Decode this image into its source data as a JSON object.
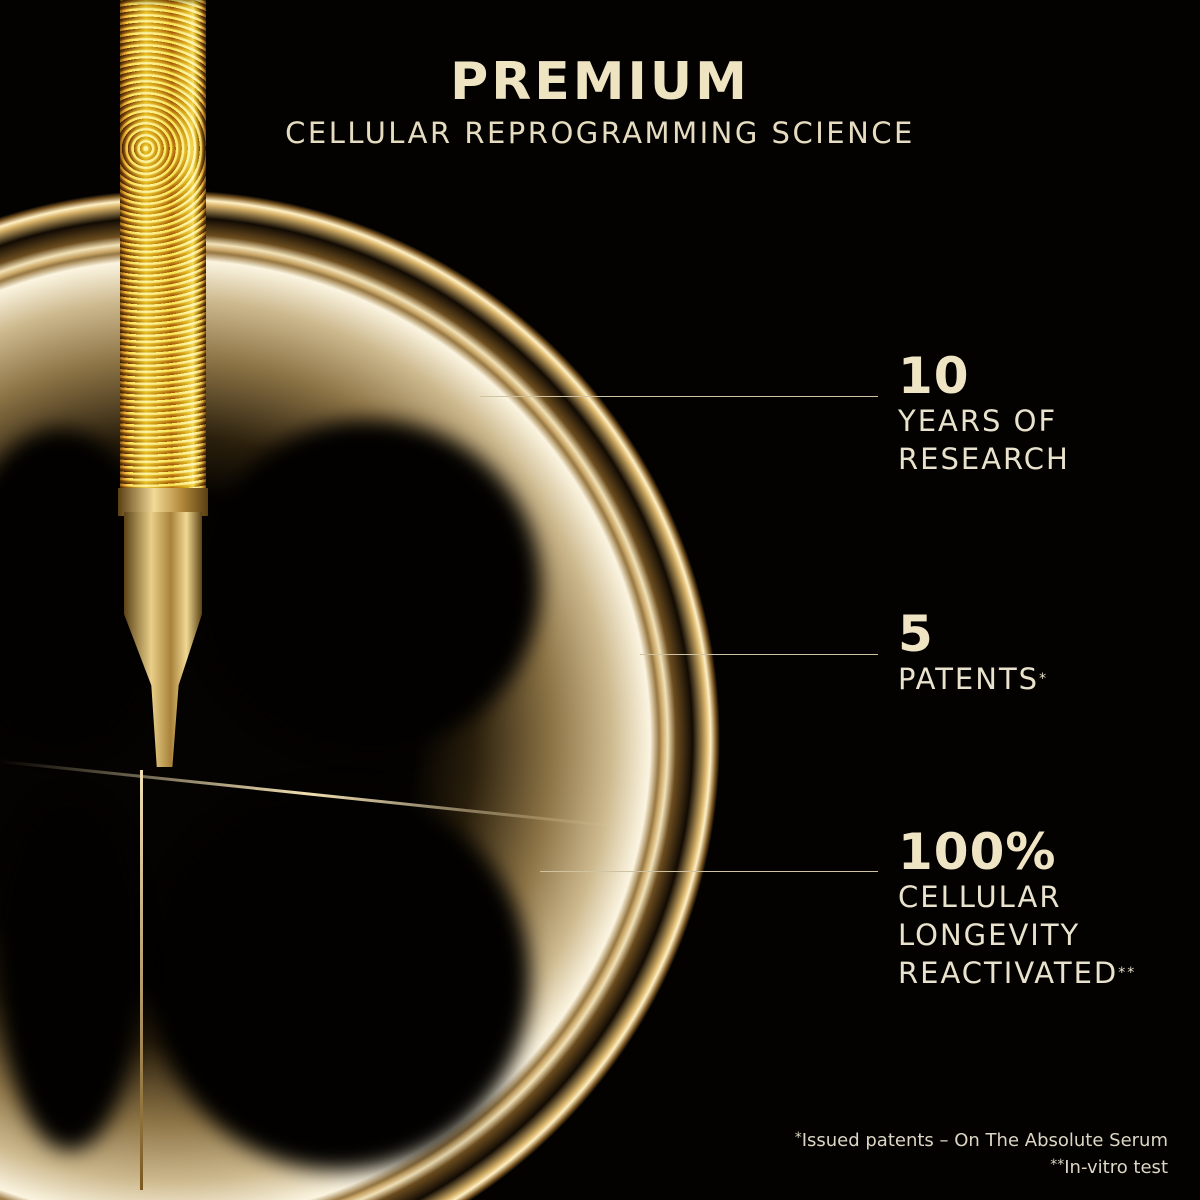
{
  "header": {
    "title": "PREMIUM",
    "subtitle": "CELLULAR REPROGRAMMING SCIENCE"
  },
  "stats": [
    {
      "value": "10",
      "label_lines": [
        "YEARS OF",
        "RESEARCH"
      ],
      "mark": ""
    },
    {
      "value": "5",
      "label_lines": [
        "PATENTS"
      ],
      "mark": "*"
    },
    {
      "value": "100%",
      "label_lines": [
        "CELLULAR",
        "LONGEVITY",
        "REACTIVATED"
      ],
      "mark": "**"
    }
  ],
  "footnotes": [
    {
      "mark": "*",
      "text": "Issued patents – On The Absolute Serum"
    },
    {
      "mark": "**",
      "text": "In-vitro test"
    }
  ],
  "colors": {
    "background": "#030201",
    "accent_gold": "#efe5c5"
  }
}
